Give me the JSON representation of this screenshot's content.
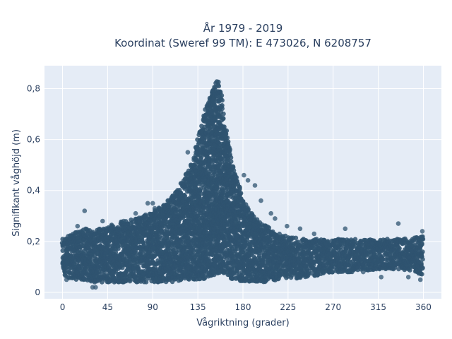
{
  "chart_data": {
    "type": "scatter",
    "title_line1": "År 1979 - 2019",
    "title_line2": "Koordinat (Sweref 99 TM): E 473026, N 6208757",
    "xlabel": "Vågriktning (grader)",
    "ylabel": "Signifikant våghöjd (m)",
    "xlim": [
      -18,
      378
    ],
    "ylim": [
      -0.025,
      0.89
    ],
    "x_ticks": [
      0,
      45,
      90,
      135,
      180,
      225,
      270,
      315,
      360
    ],
    "x_tick_labels": [
      "0",
      "45",
      "90",
      "135",
      "180",
      "225",
      "270",
      "315",
      "360"
    ],
    "y_ticks": [
      0,
      0.2,
      0.4,
      0.6,
      0.8
    ],
    "y_tick_labels": [
      "0",
      "0,2",
      "0,4",
      "0,6",
      "0,8"
    ],
    "grid": true,
    "marker_color": "#2f5470",
    "plot_bg": "#e5ecf6",
    "envelope": {
      "x": [
        0,
        10,
        20,
        30,
        45,
        60,
        75,
        90,
        100,
        110,
        120,
        130,
        135,
        140,
        145,
        150,
        153,
        155,
        158,
        160,
        165,
        170,
        175,
        180,
        190,
        200,
        215,
        225,
        240,
        260,
        270,
        290,
        315,
        340,
        360
      ],
      "upper": [
        0.21,
        0.23,
        0.25,
        0.25,
        0.26,
        0.28,
        0.29,
        0.32,
        0.34,
        0.38,
        0.44,
        0.52,
        0.6,
        0.68,
        0.75,
        0.8,
        0.83,
        0.84,
        0.8,
        0.72,
        0.6,
        0.5,
        0.43,
        0.37,
        0.3,
        0.27,
        0.24,
        0.22,
        0.21,
        0.21,
        0.21,
        0.21,
        0.21,
        0.21,
        0.22
      ],
      "lower": [
        0.07,
        0.05,
        0.05,
        0.04,
        0.04,
        0.04,
        0.04,
        0.04,
        0.04,
        0.04,
        0.05,
        0.05,
        0.05,
        0.05,
        0.06,
        0.06,
        0.07,
        0.07,
        0.07,
        0.07,
        0.06,
        0.05,
        0.05,
        0.04,
        0.04,
        0.04,
        0.05,
        0.05,
        0.06,
        0.07,
        0.08,
        0.08,
        0.09,
        0.09,
        0.07
      ]
    },
    "outliers": [
      {
        "x": 22,
        "y": 0.32
      },
      {
        "x": 85,
        "y": 0.35
      },
      {
        "x": 90,
        "y": 0.35
      },
      {
        "x": 92,
        "y": 0.33
      },
      {
        "x": 105,
        "y": 0.36
      },
      {
        "x": 125,
        "y": 0.55
      },
      {
        "x": 131,
        "y": 0.52
      },
      {
        "x": 128,
        "y": 0.5
      },
      {
        "x": 181,
        "y": 0.46
      },
      {
        "x": 185,
        "y": 0.44
      },
      {
        "x": 192,
        "y": 0.42
      },
      {
        "x": 198,
        "y": 0.36
      },
      {
        "x": 208,
        "y": 0.31
      },
      {
        "x": 212,
        "y": 0.29
      },
      {
        "x": 224,
        "y": 0.26
      },
      {
        "x": 237,
        "y": 0.25
      },
      {
        "x": 251,
        "y": 0.23
      },
      {
        "x": 282,
        "y": 0.25
      },
      {
        "x": 335,
        "y": 0.27
      },
      {
        "x": 359,
        "y": 0.24
      },
      {
        "x": 73,
        "y": 0.31
      },
      {
        "x": 61,
        "y": 0.28
      },
      {
        "x": 40,
        "y": 0.28
      },
      {
        "x": 15,
        "y": 0.26
      },
      {
        "x": 4,
        "y": 0.05
      },
      {
        "x": 30,
        "y": 0.02
      },
      {
        "x": 33,
        "y": 0.02
      },
      {
        "x": 318,
        "y": 0.06
      },
      {
        "x": 285,
        "y": 0.08
      },
      {
        "x": 300,
        "y": 0.08
      },
      {
        "x": 345,
        "y": 0.06
      },
      {
        "x": 357,
        "y": 0.05
      }
    ]
  }
}
